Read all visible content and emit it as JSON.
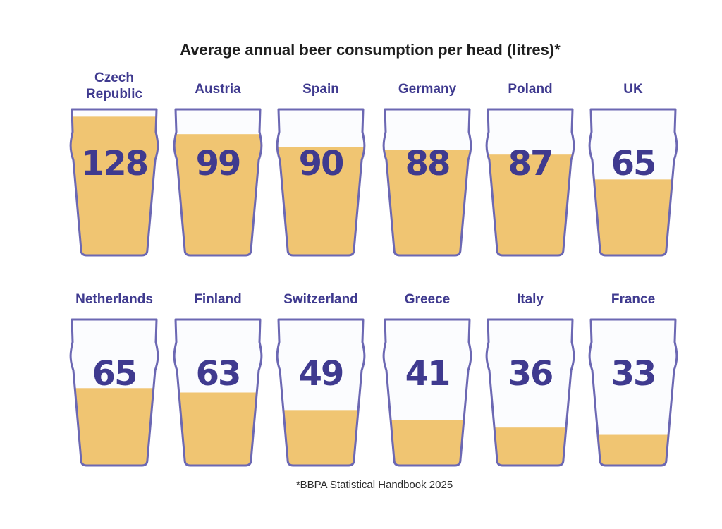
{
  "chart_data": {
    "type": "bar",
    "title": "Average annual beer consumption per head (litres)*",
    "footnote": "*BBPA Statistical Handbook 2025",
    "unit": "litres",
    "categories": [
      "Czech Republic",
      "Austria",
      "Spain",
      "Germany",
      "Poland",
      "UK",
      "Netherlands",
      "Finland",
      "Switzerland",
      "Greece",
      "Italy",
      "France"
    ],
    "label_lines": [
      [
        "Czech",
        "Republic"
      ],
      [
        "Austria"
      ],
      [
        "Spain"
      ],
      [
        "Germany"
      ],
      [
        "Poland"
      ],
      [
        "UK"
      ],
      [
        "Netherlands"
      ],
      [
        "Finland"
      ],
      [
        "Switzerland"
      ],
      [
        "Greece"
      ],
      [
        "Italy"
      ],
      [
        "France"
      ]
    ],
    "values": [
      128,
      99,
      90,
      88,
      87,
      65,
      65,
      63,
      49,
      41,
      36,
      33
    ],
    "value_labels": [
      "128",
      "99",
      "90",
      "88",
      "87",
      "65",
      "65",
      "63",
      "49",
      "41",
      "36",
      "33"
    ],
    "fill_fractions": [
      0.95,
      0.83,
      0.74,
      0.72,
      0.69,
      0.52,
      0.53,
      0.5,
      0.38,
      0.31,
      0.26,
      0.21
    ],
    "colors": {
      "beer": "#f0c572",
      "glass_outline": "#6c68b3",
      "glass_empty": "#fbfcfe",
      "label": "#3f3a8f",
      "title": "#1e1e1e"
    }
  }
}
